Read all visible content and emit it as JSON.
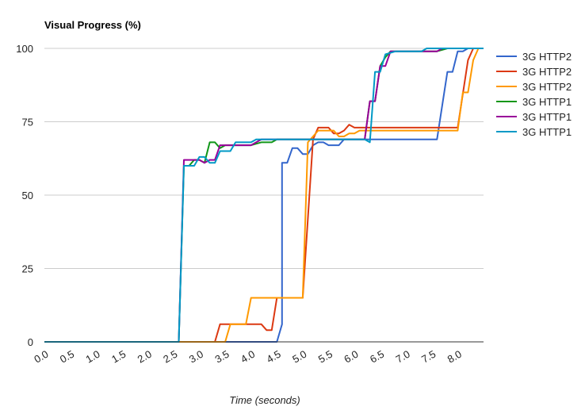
{
  "chart_data": {
    "type": "line",
    "title": "Visual Progress (%)",
    "xlabel": "Time (seconds)",
    "ylabel": "",
    "xlim": [
      0,
      8.5
    ],
    "ylim": [
      0,
      100
    ],
    "x_ticks": [
      "0.0",
      "0.5",
      "1.0",
      "1.5",
      "2.0",
      "2.5",
      "3.0",
      "3.5",
      "4.0",
      "4.5",
      "5.0",
      "5.5",
      "6.0",
      "6.5",
      "7.0",
      "7.5",
      "8.0"
    ],
    "y_ticks": [
      "0",
      "25",
      "50",
      "75",
      "100"
    ],
    "grid": "horizontal",
    "legend_position": "right",
    "series": [
      {
        "name": "3G HTTP2",
        "color": "#3366CC",
        "points": [
          [
            0,
            0
          ],
          [
            2.6,
            0
          ],
          [
            4.5,
            0
          ],
          [
            4.6,
            6
          ],
          [
            4.6,
            61
          ],
          [
            4.7,
            61
          ],
          [
            4.8,
            66
          ],
          [
            4.9,
            66
          ],
          [
            5.0,
            64
          ],
          [
            5.1,
            64
          ],
          [
            5.2,
            67
          ],
          [
            5.3,
            68
          ],
          [
            5.4,
            68
          ],
          [
            5.5,
            67
          ],
          [
            5.7,
            67
          ],
          [
            5.8,
            69
          ],
          [
            7.6,
            69
          ],
          [
            7.8,
            92
          ],
          [
            7.9,
            92
          ],
          [
            8.0,
            99
          ],
          [
            8.1,
            99
          ],
          [
            8.2,
            100
          ],
          [
            8.5,
            100
          ]
        ]
      },
      {
        "name": "3G HTTP2",
        "color": "#DC3912",
        "points": [
          [
            0,
            0
          ],
          [
            3.3,
            0
          ],
          [
            3.4,
            6
          ],
          [
            4.0,
            6
          ],
          [
            4.2,
            6
          ],
          [
            4.3,
            4
          ],
          [
            4.4,
            4
          ],
          [
            4.5,
            15
          ],
          [
            5.0,
            15
          ],
          [
            5.2,
            69
          ],
          [
            5.3,
            73
          ],
          [
            5.5,
            73
          ],
          [
            5.6,
            71
          ],
          [
            5.7,
            71
          ],
          [
            5.8,
            72
          ],
          [
            5.9,
            74
          ],
          [
            6.0,
            73
          ],
          [
            8.0,
            73
          ],
          [
            8.2,
            96
          ],
          [
            8.3,
            100
          ],
          [
            8.5,
            100
          ]
        ]
      },
      {
        "name": "3G HTTP2",
        "color": "#FF9900",
        "points": [
          [
            0,
            0
          ],
          [
            3.5,
            0
          ],
          [
            3.6,
            6
          ],
          [
            3.9,
            6
          ],
          [
            4.0,
            15
          ],
          [
            5.0,
            15
          ],
          [
            5.1,
            68
          ],
          [
            5.3,
            72
          ],
          [
            5.6,
            72
          ],
          [
            5.7,
            70
          ],
          [
            5.8,
            70
          ],
          [
            5.9,
            71
          ],
          [
            6.0,
            71
          ],
          [
            6.1,
            72
          ],
          [
            7.9,
            72
          ],
          [
            8.0,
            72
          ],
          [
            8.1,
            85
          ],
          [
            8.2,
            85
          ],
          [
            8.3,
            96
          ],
          [
            8.4,
            100
          ],
          [
            8.5,
            100
          ]
        ]
      },
      {
        "name": "3G HTTP1",
        "color": "#109618",
        "points": [
          [
            0,
            0
          ],
          [
            2.6,
            0
          ],
          [
            2.7,
            60
          ],
          [
            2.8,
            60
          ],
          [
            2.9,
            62
          ],
          [
            3.0,
            62
          ],
          [
            3.1,
            61
          ],
          [
            3.2,
            68
          ],
          [
            3.3,
            68
          ],
          [
            3.4,
            66
          ],
          [
            3.5,
            67
          ],
          [
            4.0,
            67
          ],
          [
            4.2,
            68
          ],
          [
            4.4,
            68
          ],
          [
            4.5,
            69
          ],
          [
            6.2,
            69
          ],
          [
            6.3,
            82
          ],
          [
            6.4,
            82
          ],
          [
            6.5,
            94
          ],
          [
            6.6,
            97
          ],
          [
            6.7,
            99
          ],
          [
            7.6,
            99
          ],
          [
            7.8,
            100
          ],
          [
            8.5,
            100
          ]
        ]
      },
      {
        "name": "3G HTTP1",
        "color": "#990099",
        "points": [
          [
            0,
            0
          ],
          [
            2.6,
            0
          ],
          [
            2.7,
            62
          ],
          [
            3.0,
            62
          ],
          [
            3.1,
            61
          ],
          [
            3.2,
            62
          ],
          [
            3.3,
            62
          ],
          [
            3.4,
            67
          ],
          [
            4.0,
            67
          ],
          [
            4.1,
            68
          ],
          [
            4.2,
            69
          ],
          [
            6.2,
            69
          ],
          [
            6.3,
            82
          ],
          [
            6.4,
            82
          ],
          [
            6.5,
            94
          ],
          [
            6.6,
            94
          ],
          [
            6.7,
            99
          ],
          [
            7.6,
            99
          ],
          [
            7.7,
            100
          ],
          [
            8.5,
            100
          ]
        ]
      },
      {
        "name": "3G HTTP1",
        "color": "#0099C6",
        "points": [
          [
            0,
            0
          ],
          [
            2.6,
            0
          ],
          [
            2.7,
            60
          ],
          [
            2.8,
            60
          ],
          [
            2.9,
            60
          ],
          [
            3.0,
            63
          ],
          [
            3.1,
            63
          ],
          [
            3.2,
            61
          ],
          [
            3.3,
            61
          ],
          [
            3.4,
            65
          ],
          [
            3.6,
            65
          ],
          [
            3.7,
            68
          ],
          [
            4.0,
            68
          ],
          [
            4.1,
            69
          ],
          [
            6.2,
            69
          ],
          [
            6.3,
            68
          ],
          [
            6.4,
            92
          ],
          [
            6.5,
            92
          ],
          [
            6.6,
            98
          ],
          [
            6.8,
            99
          ],
          [
            7.3,
            99
          ],
          [
            7.4,
            100
          ],
          [
            8.5,
            100
          ]
        ]
      }
    ]
  }
}
